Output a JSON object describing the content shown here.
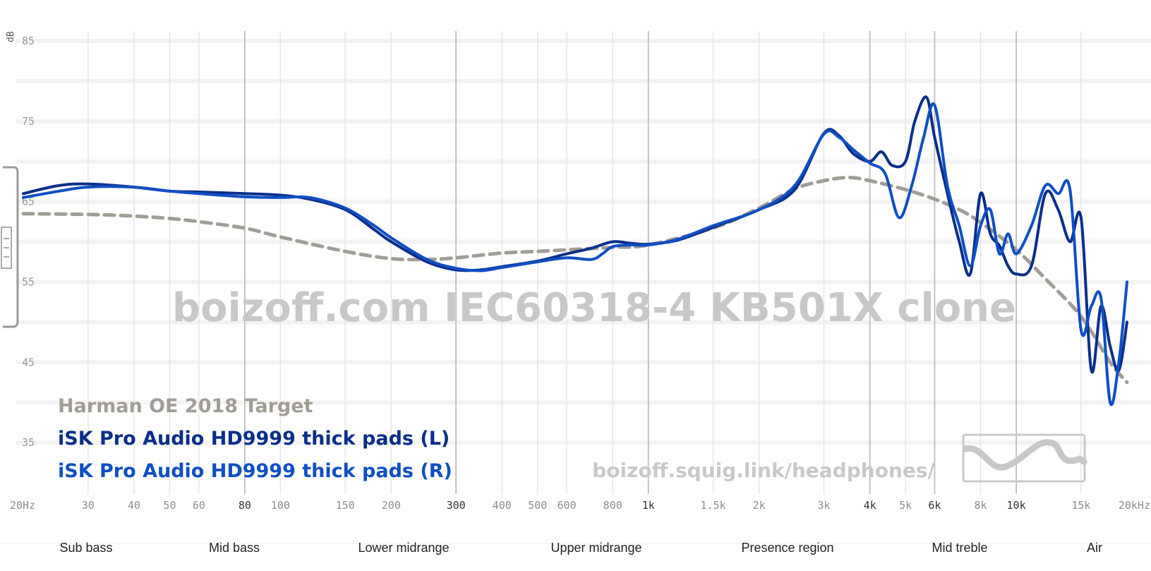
{
  "watermark": {
    "main": "boizoff.com IEC60318-4 KB501X clone",
    "url": "boizoff.squig.link/headphones/"
  },
  "bands": [
    "Sub bass",
    "Mid bass",
    "Lower midrange",
    "Upper midrange",
    "Presence region",
    "Mid treble",
    "Air"
  ],
  "colors": {
    "target": "#a19d96",
    "left": "#0a2e8a",
    "right": "#0f4fc4",
    "grid_minor": "#e6e6e6",
    "grid_major": "#bdbdbd"
  },
  "chart_data": {
    "type": "line",
    "xscale": "log",
    "xlim": [
      20,
      20000
    ],
    "ylim": [
      30,
      85
    ],
    "ylabel": "dB",
    "yticks": [
      35,
      45,
      55,
      65,
      75,
      85
    ],
    "xticks": [
      {
        "v": 20,
        "label": "20Hz",
        "major": false
      },
      {
        "v": 30,
        "label": "30",
        "major": false
      },
      {
        "v": 40,
        "label": "40",
        "major": false
      },
      {
        "v": 50,
        "label": "50",
        "major": false
      },
      {
        "v": 60,
        "label": "60",
        "major": false
      },
      {
        "v": 80,
        "label": "80",
        "major": true
      },
      {
        "v": 100,
        "label": "100",
        "major": false
      },
      {
        "v": 150,
        "label": "150",
        "major": false
      },
      {
        "v": 200,
        "label": "200",
        "major": false
      },
      {
        "v": 300,
        "label": "300",
        "major": true
      },
      {
        "v": 400,
        "label": "400",
        "major": false
      },
      {
        "v": 500,
        "label": "500",
        "major": false
      },
      {
        "v": 600,
        "label": "600",
        "major": false
      },
      {
        "v": 800,
        "label": "800",
        "major": false
      },
      {
        "v": 1000,
        "label": "1k",
        "major": true
      },
      {
        "v": 1500,
        "label": "1.5k",
        "major": false
      },
      {
        "v": 2000,
        "label": "2k",
        "major": false
      },
      {
        "v": 3000,
        "label": "3k",
        "major": false
      },
      {
        "v": 4000,
        "label": "4k",
        "major": true
      },
      {
        "v": 5000,
        "label": "5k",
        "major": false
      },
      {
        "v": 6000,
        "label": "6k",
        "major": true
      },
      {
        "v": 8000,
        "label": "8k",
        "major": false
      },
      {
        "v": 10000,
        "label": "10k",
        "major": true
      },
      {
        "v": 15000,
        "label": "15k",
        "major": false
      },
      {
        "v": 20000,
        "label": "20kHz",
        "major": false
      }
    ],
    "grid": true,
    "legend_position": "bottom-left",
    "series": [
      {
        "name": "Harman OE 2018 Target",
        "dashed": true,
        "x": [
          20,
          30,
          40,
          50,
          60,
          80,
          100,
          150,
          200,
          250,
          300,
          400,
          500,
          600,
          800,
          1000,
          1500,
          2000,
          2500,
          3000,
          3500,
          4000,
          5000,
          6000,
          7000,
          8000,
          10000,
          12000,
          15000,
          18000,
          20000
        ],
        "y": [
          63.5,
          63.4,
          63.2,
          62.9,
          62.5,
          61.7,
          60.6,
          58.8,
          57.9,
          57.8,
          58.0,
          58.6,
          58.8,
          59.0,
          59.3,
          59.6,
          61.7,
          64.2,
          66.6,
          67.6,
          68.0,
          67.6,
          66.5,
          65.3,
          64.0,
          62.4,
          59.0,
          55.4,
          50.7,
          45.0,
          42.5
        ]
      },
      {
        "name": "iSK Pro Audio HD9999 thick pads (L)",
        "dashed": false,
        "x": [
          20,
          25,
          30,
          40,
          50,
          60,
          80,
          100,
          120,
          150,
          180,
          200,
          250,
          300,
          350,
          400,
          500,
          600,
          700,
          800,
          900,
          1000,
          1200,
          1500,
          2000,
          2500,
          3000,
          3300,
          3600,
          4000,
          4300,
          4600,
          5000,
          5300,
          5700,
          6000,
          6500,
          7000,
          7500,
          8000,
          8500,
          9000,
          9500,
          10000,
          11000,
          12000,
          13000,
          14000,
          15000,
          16000,
          17000,
          18000,
          19000,
          20000
        ],
        "y": [
          66.0,
          67.0,
          67.2,
          66.8,
          66.3,
          66.2,
          66.0,
          65.8,
          65.3,
          64.0,
          61.5,
          60.0,
          57.5,
          56.5,
          56.5,
          56.9,
          57.6,
          58.5,
          59.2,
          60.0,
          59.8,
          59.7,
          60.2,
          61.8,
          64.0,
          66.5,
          73.5,
          73.2,
          71.0,
          70.0,
          71.2,
          69.5,
          70.0,
          75.0,
          78.0,
          73.0,
          66.0,
          60.0,
          56.0,
          66.0,
          61.0,
          59.5,
          57.0,
          56.0,
          57.0,
          66.0,
          64.0,
          60.0,
          63.0,
          44.0,
          52.0,
          47.0,
          44.0,
          50.0
        ]
      },
      {
        "name": "iSK Pro Audio HD9999 thick pads (R)",
        "dashed": false,
        "x": [
          20,
          25,
          30,
          40,
          50,
          60,
          80,
          100,
          120,
          150,
          180,
          200,
          250,
          300,
          350,
          400,
          500,
          600,
          700,
          750,
          800,
          900,
          1000,
          1200,
          1500,
          2000,
          2500,
          3000,
          3300,
          3600,
          4000,
          4400,
          4800,
          5200,
          5600,
          6000,
          6500,
          7000,
          7500,
          8000,
          8500,
          9000,
          9500,
          10000,
          11000,
          12000,
          13000,
          14000,
          15000,
          16000,
          17000,
          18000,
          19000,
          20000
        ],
        "y": [
          65.5,
          66.3,
          66.8,
          66.8,
          66.3,
          66.0,
          65.6,
          65.5,
          65.5,
          64.2,
          62.0,
          60.5,
          57.8,
          56.7,
          56.4,
          56.8,
          57.5,
          58.0,
          57.8,
          58.5,
          59.4,
          59.6,
          59.6,
          60.3,
          62.0,
          64.0,
          67.0,
          73.4,
          73.0,
          71.5,
          69.8,
          68.5,
          63.0,
          67.0,
          73.0,
          77.0,
          67.0,
          62.0,
          57.0,
          62.0,
          64.0,
          58.5,
          61.0,
          58.5,
          62.0,
          67.0,
          66.0,
          66.5,
          49.0,
          52.0,
          53.0,
          40.0,
          45.0,
          55.0
        ]
      }
    ]
  }
}
